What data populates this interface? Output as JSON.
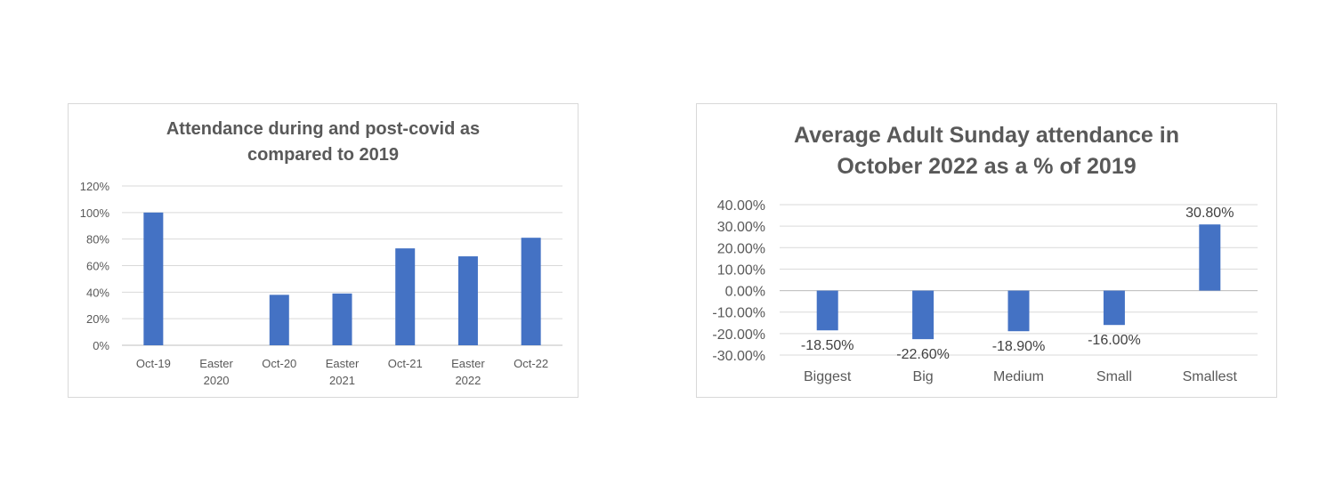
{
  "colors": {
    "bar": "#4472c4",
    "grid": "#d9d9d9",
    "text": "#595959"
  },
  "chart_data": [
    {
      "type": "bar",
      "title": "Attendance during and post-covid as\ncompared to 2019",
      "categories": [
        "Oct-19",
        "Easter\n2020",
        "Oct-20",
        "Easter\n2021",
        "Oct-21",
        "Easter\n2022",
        "Oct-22"
      ],
      "values": [
        1.0,
        0.0,
        0.38,
        0.39,
        0.73,
        0.67,
        0.81
      ],
      "ylim": [
        0,
        1.2
      ],
      "yticks": [
        0,
        0.2,
        0.4,
        0.6,
        0.8,
        1.0,
        1.2
      ],
      "ytick_labels": [
        "0%",
        "20%",
        "40%",
        "60%",
        "80%",
        "100%",
        "120%"
      ],
      "grid": true,
      "legend": "none"
    },
    {
      "type": "bar",
      "title": "Average Adult Sunday attendance in\nOctober 2022 as a % of 2019",
      "categories": [
        "Biggest",
        "Big",
        "Medium",
        "Small",
        "Smallest"
      ],
      "values": [
        -0.185,
        -0.226,
        -0.189,
        -0.16,
        0.308
      ],
      "data_labels": [
        "-18.50%",
        "-22.60%",
        "-18.90%",
        "-16.00%",
        "30.80%"
      ],
      "ylim": [
        -0.3,
        0.4
      ],
      "yticks": [
        -0.3,
        -0.2,
        -0.1,
        0,
        0.1,
        0.2,
        0.3,
        0.4
      ],
      "ytick_labels": [
        "-30.00%",
        "-20.00%",
        "-10.00%",
        "0.00%",
        "10.00%",
        "20.00%",
        "30.00%",
        "40.00%"
      ],
      "grid": true,
      "legend": "none"
    }
  ]
}
